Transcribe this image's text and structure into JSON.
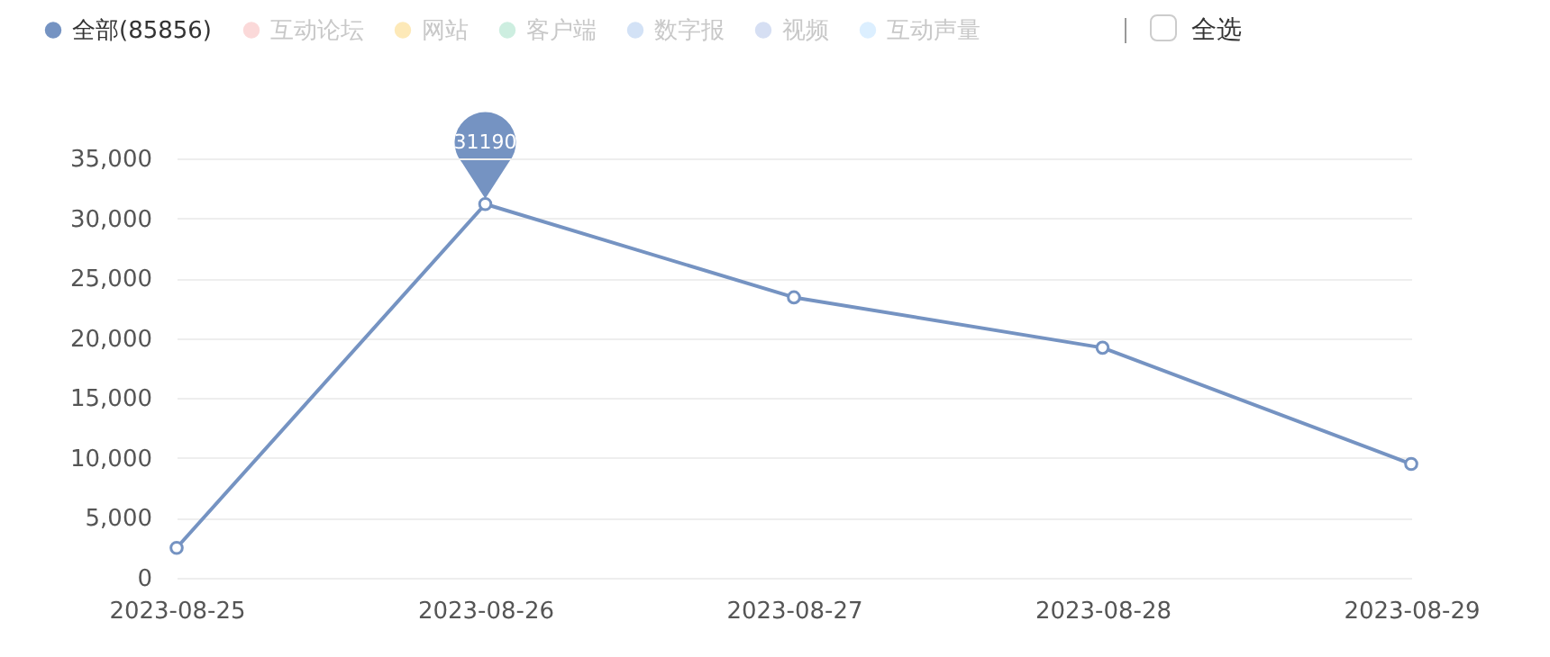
{
  "chart_data": {
    "type": "line",
    "categories": [
      "2023-08-25",
      "2023-08-26",
      "2023-08-27",
      "2023-08-28",
      "2023-08-29"
    ],
    "series": [
      {
        "name": "全部(85856)",
        "color": "#7593c2",
        "values": [
          2500,
          31190,
          23400,
          19200,
          9500
        ],
        "value_labels": [
          null,
          "31190",
          null,
          null,
          null
        ]
      },
      {
        "name": "互动论坛",
        "color": "#fbd9d9",
        "values": [
          null,
          null,
          null,
          null,
          null
        ]
      },
      {
        "name": "网站",
        "color": "#fde9b8",
        "values": [
          null,
          null,
          null,
          null,
          null
        ]
      },
      {
        "name": "客户端",
        "color": "#cdeee0",
        "values": [
          null,
          null,
          null,
          null,
          null
        ]
      },
      {
        "name": "数字报",
        "color": "#d3e2f6",
        "values": [
          null,
          null,
          null,
          null,
          null
        ]
      },
      {
        "name": "视频",
        "color": "#d6dff3",
        "values": [
          null,
          null,
          null,
          null,
          null
        ]
      },
      {
        "name": "互动声量",
        "color": "#dcefff",
        "values": [
          null,
          null,
          null,
          null,
          null
        ]
      }
    ],
    "ylim": [
      0,
      35000
    ],
    "yticks": [
      0,
      {
        "value": 5000,
        "label": "5,000"
      },
      {
        "value": 10000,
        "label": "10,000"
      },
      {
        "value": 15000,
        "label": "15,000"
      },
      {
        "value": 20000,
        "label": "20,000"
      },
      {
        "value": 25000,
        "label": "25,000"
      },
      {
        "value": 30000,
        "label": "30,000"
      },
      {
        "value": 35000,
        "label": "35,000"
      }
    ],
    "grid": "y",
    "legend": "top left",
    "marker": "circle",
    "line_style": "solid",
    "annotations": [
      "全选"
    ]
  }
}
